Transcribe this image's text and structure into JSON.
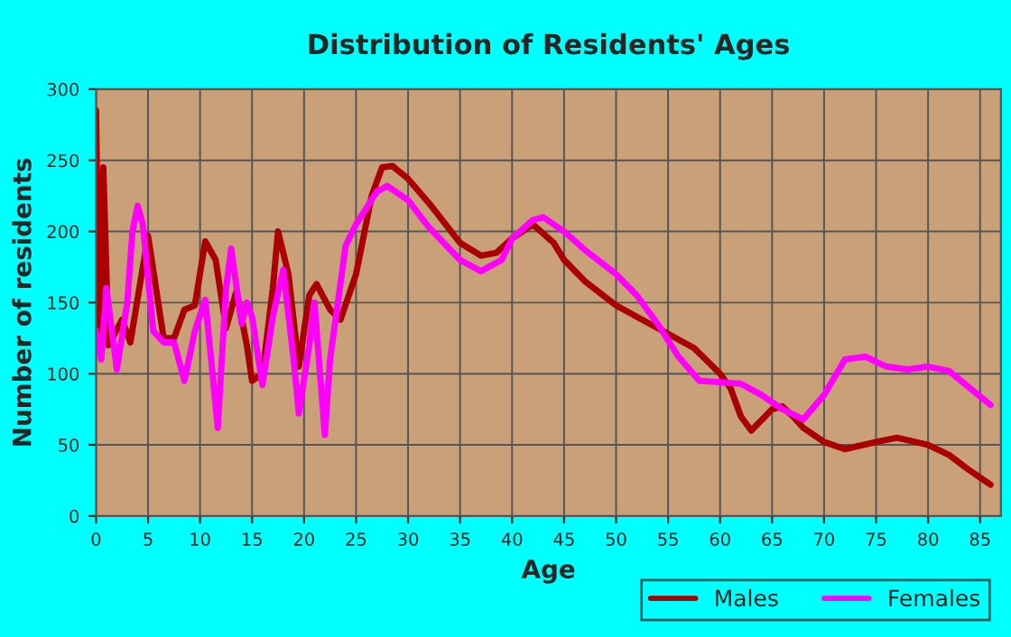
{
  "chart_data": {
    "type": "line",
    "title": "Distribution of Residents' Ages",
    "xlabel": "Age",
    "ylabel": "Number of residents",
    "xlim": [
      0,
      87
    ],
    "xticks": [
      0,
      5,
      10,
      15,
      20,
      25,
      30,
      35,
      40,
      45,
      50,
      55,
      60,
      65,
      70,
      75,
      80,
      85
    ],
    "ylim": [
      0,
      300
    ],
    "yticks": [
      0,
      50,
      100,
      150,
      200,
      250,
      300
    ],
    "grid": true,
    "legend": "bottom right",
    "marker": "none",
    "line_style": "solid",
    "series": [
      {
        "name": "Males",
        "color": "#aa0000",
        "x": [
          0,
          0.3,
          0.7,
          1.2,
          2.5,
          3.3,
          5,
          6.5,
          7.5,
          8.5,
          9.5,
          10.5,
          11.5,
          12.5,
          13.5,
          14.5,
          15,
          16,
          17,
          17.5,
          18.5,
          19.5,
          20.5,
          21.2,
          22.5,
          23.5,
          25,
          26.5,
          27.5,
          28.5,
          30,
          32,
          35,
          37,
          38.5,
          40,
          42,
          44,
          45,
          47,
          50,
          55,
          57.5,
          60,
          61,
          62,
          63,
          65,
          66,
          67,
          68,
          70,
          72,
          75,
          77,
          80,
          82,
          84,
          86
        ],
        "values": [
          285,
          125,
          245,
          120,
          138,
          122,
          197,
          125,
          125,
          145,
          148,
          193,
          180,
          132,
          158,
          120,
          95,
          100,
          160,
          200,
          170,
          105,
          155,
          163,
          145,
          138,
          170,
          225,
          245,
          246,
          237,
          220,
          192,
          183,
          185,
          195,
          205,
          192,
          180,
          165,
          148,
          128,
          118,
          100,
          90,
          70,
          60,
          75,
          77,
          70,
          62,
          52,
          47,
          52,
          55,
          50,
          43,
          32,
          22
        ]
      },
      {
        "name": "Females",
        "color": "#ff00ff",
        "x": [
          0,
          0.5,
          1,
          2,
          3,
          3.5,
          4,
          4.5,
          5.5,
          6.5,
          7.5,
          8.5,
          9.5,
          10.5,
          11.2,
          11.7,
          12.5,
          13,
          14,
          14.5,
          15,
          16,
          17,
          18,
          19,
          19.5,
          20.5,
          21,
          22,
          22.5,
          24,
          25,
          27,
          28,
          30,
          32,
          35,
          37,
          39,
          40,
          42,
          43,
          45,
          47,
          50,
          52,
          54,
          56,
          58,
          60,
          62,
          64,
          66,
          68,
          70,
          72,
          74,
          76,
          78,
          80,
          82,
          84,
          86
        ],
        "values": [
          130,
          110,
          160,
          103,
          150,
          200,
          218,
          205,
          130,
          122,
          122,
          95,
          130,
          152,
          100,
          62,
          160,
          188,
          135,
          150,
          140,
          92,
          140,
          173,
          110,
          72,
          120,
          150,
          57,
          110,
          190,
          205,
          228,
          232,
          222,
          203,
          180,
          172,
          180,
          195,
          208,
          210,
          200,
          187,
          170,
          155,
          135,
          112,
          95,
          94,
          93,
          85,
          75,
          68,
          85,
          110,
          112,
          105,
          103,
          105,
          102,
          90,
          78
        ]
      }
    ]
  }
}
